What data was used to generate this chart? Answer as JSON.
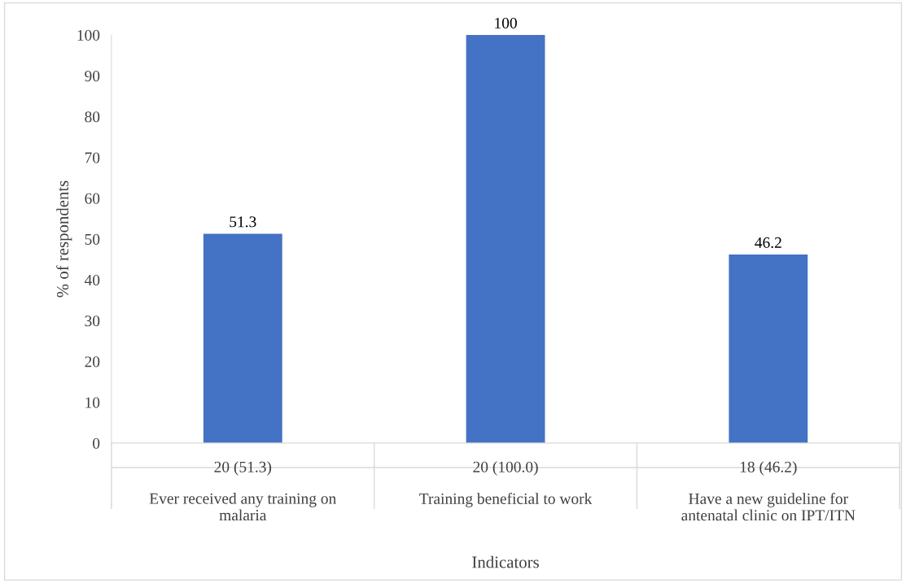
{
  "chart_data": {
    "type": "bar",
    "xlabel": "Indicators",
    "ylabel": "% of respondents",
    "categories": [
      "20 (51.3)\nEver received any training on\nmalaria",
      "20 (100.0)\nTraining beneficial to work",
      "18 (46.2)\nHave a new guideline for\nantenatal clinic on IPT/ITN"
    ],
    "values": [
      51.3,
      100,
      46.2
    ],
    "color": "#4472c4",
    "data_labels": true,
    "ylim": [
      0,
      100
    ],
    "yticks": [
      0,
      10,
      20,
      30,
      40,
      50,
      60,
      70,
      80,
      90,
      100
    ],
    "grid": false
  }
}
